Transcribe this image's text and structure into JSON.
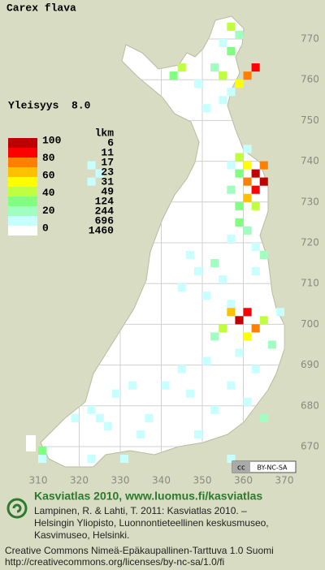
{
  "title": "Carex flava",
  "frequency": "Yleisyys  8.0",
  "legend": {
    "scale_labels": [
      100,
      80,
      60,
      40,
      20,
      0
    ],
    "colors": [
      "#c00000",
      "#ff0000",
      "#ff8000",
      "#ffc000",
      "#ffff00",
      "#c0ff40",
      "#80ff80",
      "#a0ffc0",
      "#c8ffff",
      "#ffffff"
    ],
    "count_title": "lkm",
    "counts": [
      6,
      11,
      17,
      23,
      31,
      49,
      124,
      244,
      696,
      1460
    ]
  },
  "map": {
    "xticks": [
      310,
      320,
      330,
      340,
      350,
      360,
      370
    ],
    "yticks": [
      770,
      760,
      750,
      740,
      730,
      720,
      710,
      700,
      690,
      680,
      670
    ],
    "cells": [
      [
        356,
        772,
        45
      ],
      [
        358,
        770,
        25
      ],
      [
        354,
        768,
        15
      ],
      [
        356,
        766,
        35
      ],
      [
        360,
        760,
        75
      ],
      [
        362,
        762,
        85
      ],
      [
        358,
        758,
        55
      ],
      [
        354,
        760,
        45
      ],
      [
        352,
        762,
        25
      ],
      [
        356,
        756,
        15
      ],
      [
        344,
        762,
        45
      ],
      [
        342,
        760,
        35
      ],
      [
        348,
        758,
        15
      ],
      [
        354,
        754,
        15
      ],
      [
        350,
        752,
        15
      ],
      [
        322,
        738,
        15
      ],
      [
        324,
        736,
        15
      ],
      [
        322,
        734,
        15
      ],
      [
        362,
        736,
        95
      ],
      [
        364,
        734,
        95
      ],
      [
        362,
        732,
        85
      ],
      [
        360,
        734,
        75
      ],
      [
        360,
        738,
        55
      ],
      [
        358,
        740,
        45
      ],
      [
        358,
        736,
        35
      ],
      [
        360,
        730,
        65
      ],
      [
        362,
        728,
        45
      ],
      [
        358,
        728,
        35
      ],
      [
        356,
        732,
        25
      ],
      [
        356,
        738,
        15
      ],
      [
        360,
        742,
        15
      ],
      [
        364,
        738,
        75
      ],
      [
        358,
        724,
        35
      ],
      [
        360,
        722,
        25
      ],
      [
        362,
        718,
        15
      ],
      [
        356,
        720,
        15
      ],
      [
        346,
        716,
        15
      ],
      [
        348,
        712,
        15
      ],
      [
        344,
        708,
        15
      ],
      [
        350,
        706,
        15
      ],
      [
        352,
        714,
        25
      ],
      [
        354,
        710,
        15
      ],
      [
        356,
        704,
        15
      ],
      [
        362,
        712,
        15
      ],
      [
        364,
        716,
        25
      ],
      [
        358,
        700,
        95
      ],
      [
        360,
        702,
        85
      ],
      [
        356,
        702,
        65
      ],
      [
        362,
        698,
        75
      ],
      [
        360,
        696,
        55
      ],
      [
        354,
        698,
        45
      ],
      [
        364,
        700,
        45
      ],
      [
        366,
        694,
        25
      ],
      [
        352,
        696,
        25
      ],
      [
        358,
        692,
        15
      ],
      [
        368,
        702,
        15
      ],
      [
        350,
        690,
        15
      ],
      [
        344,
        688,
        15
      ],
      [
        362,
        688,
        15
      ],
      [
        346,
        682,
        15
      ],
      [
        356,
        684,
        15
      ],
      [
        360,
        680,
        15
      ],
      [
        364,
        676,
        25
      ],
      [
        352,
        678,
        15
      ],
      [
        340,
        684,
        15
      ],
      [
        348,
        672,
        15
      ],
      [
        332,
        684,
        15
      ],
      [
        336,
        676,
        15
      ],
      [
        328,
        682,
        15
      ],
      [
        324,
        676,
        15
      ],
      [
        326,
        674,
        15
      ],
      [
        322,
        678,
        15
      ],
      [
        318,
        676,
        15
      ],
      [
        310,
        668,
        35
      ],
      [
        310,
        666,
        15
      ],
      [
        322,
        666,
        15
      ],
      [
        330,
        666,
        15
      ],
      [
        356,
        666,
        15
      ],
      [
        334,
        672,
        15
      ]
    ]
  },
  "license_badge": "BY-NC-SA",
  "footer": {
    "heading": "Kasviatlas 2010, www.luomus.fi/kasviatlas",
    "citation": [
      "Lampinen, R. & Lahti, T. 2011: Kasviatlas 2010. –",
      "Helsingin Yliopisto, Luonnontieteellinen keskusmuseo,",
      "Kasvimuseo, Helsinki."
    ],
    "license": [
      "Creative Commons Nimeä-Epäkaupallinen-Tarttuva 1.0 Suomi",
      "http://creativecommons.org/licenses/by-nc-sa/1.0/fi"
    ]
  }
}
